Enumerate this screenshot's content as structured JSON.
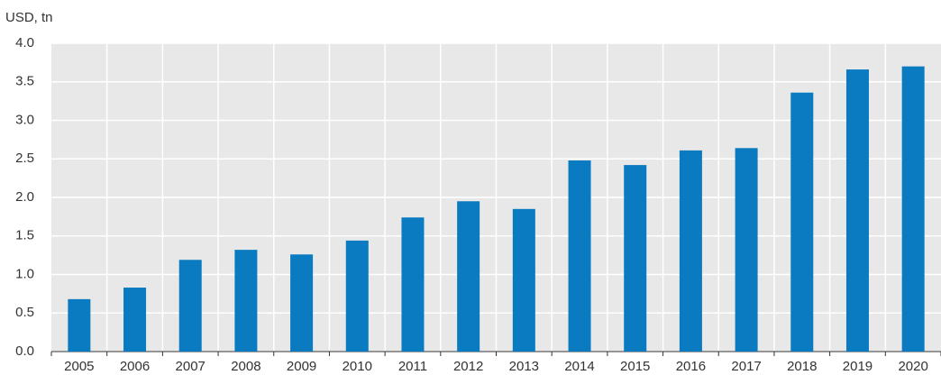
{
  "chart_data": {
    "type": "bar",
    "y_axis_label": "USD, tn",
    "categories": [
      "2005",
      "2006",
      "2007",
      "2008",
      "2009",
      "2010",
      "2011",
      "2012",
      "2013",
      "2014",
      "2015",
      "2016",
      "2017",
      "2018",
      "2019",
      "2020"
    ],
    "values": [
      0.68,
      0.83,
      1.19,
      1.32,
      1.26,
      1.44,
      1.74,
      1.95,
      1.85,
      2.48,
      2.42,
      2.61,
      2.64,
      3.36,
      3.66,
      3.7
    ],
    "color": "#0a7bc1",
    "ylim": [
      0,
      4
    ],
    "yticks": [
      {
        "value": 0,
        "label": "0.0"
      },
      0.5,
      {
        "value": 1,
        "label": "1.0"
      },
      1.5,
      {
        "value": 2,
        "label": "2.0"
      },
      2.5,
      {
        "value": 3,
        "label": "3.0"
      },
      3.5,
      {
        "value": 4,
        "label": "4.0"
      }
    ],
    "grid": true
  }
}
